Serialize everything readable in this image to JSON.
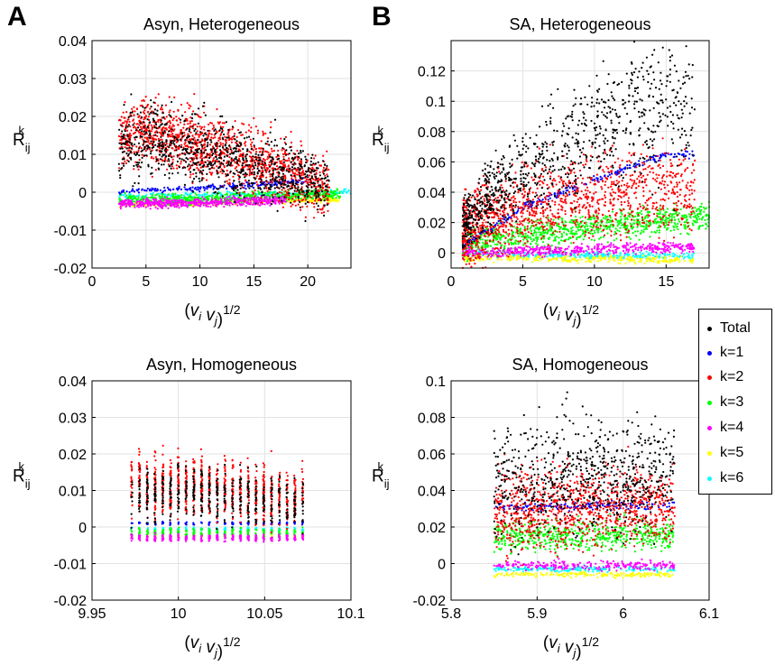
{
  "panel_letters": [
    "A",
    "B"
  ],
  "legend": {
    "items": [
      {
        "label": "Total",
        "color": "#000000"
      },
      {
        "label": "k=1",
        "color": "#0000ff"
      },
      {
        "label": "k=2",
        "color": "#ff0000"
      },
      {
        "label": "k=3",
        "color": "#00ff00"
      },
      {
        "label": "k=4",
        "color": "#ff00ff"
      },
      {
        "label": "k=5",
        "color": "#ffff00"
      },
      {
        "label": "k=6",
        "color": "#00ffff"
      }
    ]
  },
  "chart_data": [
    {
      "type": "scatter",
      "title": "Asyn, Heterogeneous",
      "xlabel": "(v_i v_j)^1/2",
      "ylabel": "R_ij^k",
      "xlim": [
        0,
        24
      ],
      "ylim": [
        -0.02,
        0.04
      ],
      "xticks": [
        0,
        5,
        10,
        15,
        20
      ],
      "xtick_labels": [
        "0",
        "5",
        "10",
        "15",
        "20"
      ],
      "yticks": [
        -0.02,
        -0.01,
        0,
        0.01,
        0.02,
        0.03,
        0.04
      ],
      "ytick_labels": [
        "-0.02",
        "-0.01",
        "0",
        "0.01",
        "0.02",
        "0.03",
        "0.04"
      ],
      "grid": true,
      "series": [
        {
          "name": "Total",
          "color": "#000000",
          "x_range": [
            2.5,
            22
          ],
          "values": [
            [
              3,
              0.012
            ],
            [
              5,
              0.014
            ],
            [
              7,
              0.013
            ],
            [
              10,
              0.011
            ],
            [
              13,
              0.009
            ],
            [
              16,
              0.006
            ],
            [
              19,
              0.004
            ],
            [
              22,
              0.001
            ]
          ]
        },
        {
          "name": "k=1",
          "color": "#0000ff",
          "x_range": [
            2.5,
            20
          ],
          "values": [
            [
              3,
              0.0003
            ],
            [
              10,
              0.001
            ],
            [
              20,
              0.003
            ]
          ]
        },
        {
          "name": "k=2",
          "color": "#ff0000",
          "x_range": [
            2.5,
            22
          ],
          "values": [
            [
              3,
              0.015
            ],
            [
              5,
              0.016
            ],
            [
              7,
              0.015
            ],
            [
              10,
              0.013
            ],
            [
              13,
              0.01
            ],
            [
              16,
              0.007
            ],
            [
              19,
              0.004
            ],
            [
              22,
              0.001
            ]
          ]
        },
        {
          "name": "k=3",
          "color": "#00ff00",
          "x_range": [
            2.5,
            23
          ],
          "values": [
            [
              3,
              -0.002
            ],
            [
              10,
              -0.002
            ],
            [
              20,
              -0.0005
            ]
          ]
        },
        {
          "name": "k=4",
          "color": "#ff00ff",
          "x_range": [
            2.5,
            18
          ],
          "values": [
            [
              3,
              -0.003
            ],
            [
              10,
              -0.0028
            ],
            [
              18,
              -0.002
            ]
          ]
        },
        {
          "name": "k=5",
          "color": "#ffff00",
          "x_range": [
            2.5,
            23
          ],
          "values": [
            [
              3,
              -0.0032
            ],
            [
              10,
              -0.003
            ],
            [
              20,
              -0.002
            ]
          ]
        },
        {
          "name": "k=6",
          "color": "#00ffff",
          "x_range": [
            2.5,
            24
          ],
          "values": [
            [
              3,
              -0.001
            ],
            [
              10,
              -0.0008
            ],
            [
              22,
              0.0
            ]
          ]
        }
      ]
    },
    {
      "type": "scatter",
      "title": "SA, Heterogeneous",
      "xlabel": "(v_i v_j)^1/2",
      "ylabel": "R_ij^k",
      "xlim": [
        0,
        18
      ],
      "ylim": [
        -0.01,
        0.14
      ],
      "xticks": [
        0,
        5,
        10,
        15
      ],
      "xtick_labels": [
        "0",
        "5",
        "10",
        "15"
      ],
      "yticks": [
        0,
        0.02,
        0.04,
        0.06,
        0.08,
        0.1,
        0.12
      ],
      "ytick_labels": [
        "0",
        "0.02",
        "0.04",
        "0.06",
        "0.08",
        "0.1",
        "0.12"
      ],
      "grid": true,
      "series": [
        {
          "name": "Total",
          "color": "#000000",
          "x_range": [
            0.8,
            17
          ],
          "values": [
            [
              1,
              0.02
            ],
            [
              3,
              0.04
            ],
            [
              5,
              0.055
            ],
            [
              8,
              0.07
            ],
            [
              11,
              0.085
            ],
            [
              14,
              0.095
            ],
            [
              17,
              0.1
            ]
          ]
        },
        {
          "name": "k=1",
          "color": "#0000ff",
          "x_range": [
            0.8,
            17
          ],
          "values": [
            [
              1,
              0.005
            ],
            [
              5,
              0.03
            ],
            [
              10,
              0.048
            ],
            [
              15,
              0.065
            ]
          ]
        },
        {
          "name": "k=2",
          "color": "#ff0000",
          "x_range": [
            0.8,
            17
          ],
          "values": [
            [
              1,
              0.012
            ],
            [
              3,
              0.025
            ],
            [
              5,
              0.03
            ],
            [
              8,
              0.035
            ],
            [
              12,
              0.04
            ],
            [
              16,
              0.042
            ]
          ]
        },
        {
          "name": "k=3",
          "color": "#00ff00",
          "x_range": [
            0.8,
            18
          ],
          "values": [
            [
              1,
              0.005
            ],
            [
              5,
              0.012
            ],
            [
              10,
              0.018
            ],
            [
              15,
              0.022
            ],
            [
              18,
              0.024
            ]
          ]
        },
        {
          "name": "k=4",
          "color": "#ff00ff",
          "x_range": [
            0.8,
            17
          ],
          "values": [
            [
              1,
              0.0
            ],
            [
              8,
              0.002
            ],
            [
              17,
              0.004
            ]
          ]
        },
        {
          "name": "k=5",
          "color": "#ffff00",
          "x_range": [
            0.8,
            17
          ],
          "values": [
            [
              1,
              -0.003
            ],
            [
              8,
              -0.004
            ],
            [
              17,
              -0.005
            ]
          ]
        },
        {
          "name": "k=6",
          "color": "#00ffff",
          "x_range": [
            0.8,
            17
          ],
          "values": [
            [
              1,
              -0.001
            ],
            [
              8,
              -0.0015
            ],
            [
              17,
              -0.002
            ]
          ]
        }
      ]
    },
    {
      "type": "scatter",
      "title": "Asyn, Homogeneous",
      "xlabel": "(v_i v_j)^1/2",
      "ylabel": "R_ij^k",
      "xlim": [
        9.95,
        10.1
      ],
      "ylim": [
        -0.02,
        0.04
      ],
      "xticks": [
        9.95,
        10,
        10.05,
        10.1
      ],
      "xtick_labels": [
        "9.95",
        "10",
        "10.05",
        "10.1"
      ],
      "yticks": [
        -0.02,
        -0.01,
        0,
        0.01,
        0.02,
        0.03,
        0.04
      ],
      "ytick_labels": [
        "-0.02",
        "-0.01",
        "0",
        "0.01",
        "0.02",
        "0.03",
        "0.04"
      ],
      "grid": true,
      "series": [
        {
          "name": "Total",
          "color": "#000000",
          "x_range": [
            9.973,
            10.072
          ],
          "values": [
            [
              9.98,
              0.009
            ],
            [
              10.0,
              0.01
            ],
            [
              10.02,
              0.009
            ],
            [
              10.04,
              0.008
            ],
            [
              10.07,
              0.006
            ]
          ]
        },
        {
          "name": "k=1",
          "color": "#0000ff",
          "x_range": [
            9.973,
            10.072
          ],
          "values": [
            [
              9.98,
              0.001
            ],
            [
              10.07,
              0.001
            ]
          ]
        },
        {
          "name": "k=2",
          "color": "#ff0000",
          "x_range": [
            9.973,
            10.072
          ],
          "values": [
            [
              9.98,
              0.011
            ],
            [
              10.0,
              0.012
            ],
            [
              10.02,
              0.011
            ],
            [
              10.04,
              0.01
            ],
            [
              10.07,
              0.008
            ]
          ]
        },
        {
          "name": "k=3",
          "color": "#00ff00",
          "x_range": [
            9.973,
            10.072
          ],
          "values": [
            [
              9.98,
              -0.0015
            ],
            [
              10.07,
              -0.0015
            ]
          ]
        },
        {
          "name": "k=4",
          "color": "#ff00ff",
          "x_range": [
            9.973,
            10.072
          ],
          "values": [
            [
              9.98,
              -0.003
            ],
            [
              10.07,
              -0.003
            ]
          ]
        },
        {
          "name": "k=5",
          "color": "#ffff00",
          "x_range": [
            9.973,
            10.072
          ],
          "values": [
            [
              9.98,
              -0.0025
            ],
            [
              10.07,
              -0.0025
            ]
          ]
        },
        {
          "name": "k=6",
          "color": "#00ffff",
          "x_range": [
            9.973,
            10.072
          ],
          "values": [
            [
              9.98,
              -0.0005
            ],
            [
              10.07,
              -0.0005
            ]
          ]
        }
      ]
    },
    {
      "type": "scatter",
      "title": "SA, Homogeneous",
      "xlabel": "(v_i v_j)^1/2",
      "ylabel": "R_ij^k",
      "xlim": [
        5.8,
        6.1
      ],
      "ylim": [
        -0.02,
        0.1
      ],
      "xticks": [
        5.8,
        5.9,
        6,
        6.1
      ],
      "xtick_labels": [
        "5.8",
        "5.9",
        "6",
        "6.1"
      ],
      "yticks": [
        -0.02,
        0,
        0.02,
        0.04,
        0.06,
        0.08,
        0.1
      ],
      "ytick_labels": [
        "-0.02",
        "0",
        "0.02",
        "0.04",
        "0.06",
        "0.08",
        "0.1"
      ],
      "grid": true,
      "series": [
        {
          "name": "Total",
          "color": "#000000",
          "x_range": [
            5.85,
            6.06
          ],
          "values": [
            [
              5.86,
              0.045
            ],
            [
              5.95,
              0.05
            ],
            [
              6.05,
              0.048
            ]
          ]
        },
        {
          "name": "k=1",
          "color": "#0000ff",
          "x_range": [
            5.85,
            6.06
          ],
          "values": [
            [
              5.86,
              0.031
            ],
            [
              6.05,
              0.032
            ]
          ]
        },
        {
          "name": "k=2",
          "color": "#ff0000",
          "x_range": [
            5.85,
            6.06
          ],
          "values": [
            [
              5.86,
              0.028
            ],
            [
              5.95,
              0.032
            ],
            [
              6.05,
              0.03
            ]
          ]
        },
        {
          "name": "k=3",
          "color": "#00ff00",
          "x_range": [
            5.85,
            6.06
          ],
          "values": [
            [
              5.86,
              0.015
            ],
            [
              6.05,
              0.016
            ]
          ]
        },
        {
          "name": "k=4",
          "color": "#ff00ff",
          "x_range": [
            5.85,
            6.06
          ],
          "values": [
            [
              5.86,
              -0.001
            ],
            [
              6.05,
              -0.001
            ]
          ]
        },
        {
          "name": "k=5",
          "color": "#ffff00",
          "x_range": [
            5.85,
            6.06
          ],
          "values": [
            [
              5.86,
              -0.006
            ],
            [
              6.05,
              -0.006
            ]
          ]
        },
        {
          "name": "k=6",
          "color": "#00ffff",
          "x_range": [
            5.85,
            6.06
          ],
          "values": [
            [
              5.86,
              -0.003
            ],
            [
              6.05,
              -0.003
            ]
          ]
        }
      ]
    }
  ]
}
